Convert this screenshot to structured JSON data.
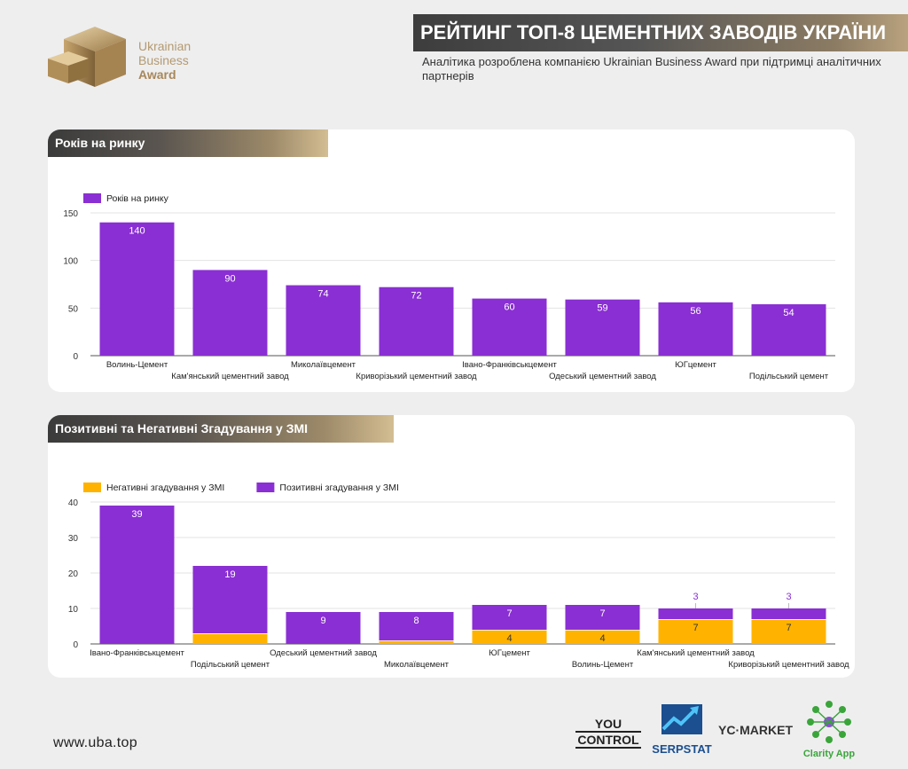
{
  "brand": {
    "line1": "Ukrainian",
    "line2": "Business",
    "line3": "Award"
  },
  "header": {
    "title": "РЕЙТИНГ ТОП-8 ЦЕМЕНТНИХ ЗАВОДІВ УКРАЇНИ",
    "subtitle": "Аналітика розроблена компанією Ukrainian Business Award при підтримці аналітичних партнерів"
  },
  "sections": [
    {
      "title": "Років на ринку"
    },
    {
      "title": "Позитивні та Негативні Згадування у ЗМІ"
    }
  ],
  "footer": {
    "url": "www.uba.top"
  },
  "partners": {
    "youcontrol_line1": "YOU",
    "youcontrol_line2": "CONTROL",
    "serpstat": "SERPSTAT",
    "ycmarket": "YC·MARKET",
    "clarity": "Clarity App"
  },
  "colors": {
    "purple": "#8a2fd3",
    "orange": "#ffb300",
    "gold": "#b49a70"
  },
  "chart_data": [
    {
      "type": "bar",
      "title": "Років на ринку",
      "categories": [
        "Волинь-Цемент",
        "Кам'янський цементний завод",
        "Миколаївцемент",
        "Криворізький цементний завод",
        "Івано-Франківськцемент",
        "Одеський цементний завод",
        "ЮГцемент",
        "Подільський цемент"
      ],
      "series": [
        {
          "name": "Років на ринку",
          "values": [
            140,
            90,
            74,
            72,
            60,
            59,
            56,
            54
          ]
        }
      ],
      "ylim": [
        0,
        150
      ],
      "yticks": [
        0,
        50,
        100,
        150
      ],
      "grid": true,
      "legend": "top-left"
    },
    {
      "type": "bar",
      "stacked": true,
      "title": "Позитивні та Негативні Згадування у ЗМІ",
      "categories": [
        "Івано-Франківськцемент",
        "Подільський цемент",
        "Одеський цементний завод",
        "Миколаївцемент",
        "ЮГцемент",
        "Волинь-Цемент",
        "Кам'янський цементний завод",
        "Криворізький цементний завод"
      ],
      "series": [
        {
          "name": "Негативні згадування у ЗМІ",
          "values": [
            0,
            3,
            0,
            1,
            4,
            4,
            7,
            7
          ]
        },
        {
          "name": "Позитивні згадування у ЗМІ",
          "values": [
            39,
            19,
            9,
            8,
            7,
            7,
            3,
            3
          ]
        }
      ],
      "ylim": [
        0,
        40
      ],
      "yticks": [
        0,
        10,
        20,
        30,
        40
      ],
      "grid": true,
      "legend": "top-left"
    }
  ]
}
